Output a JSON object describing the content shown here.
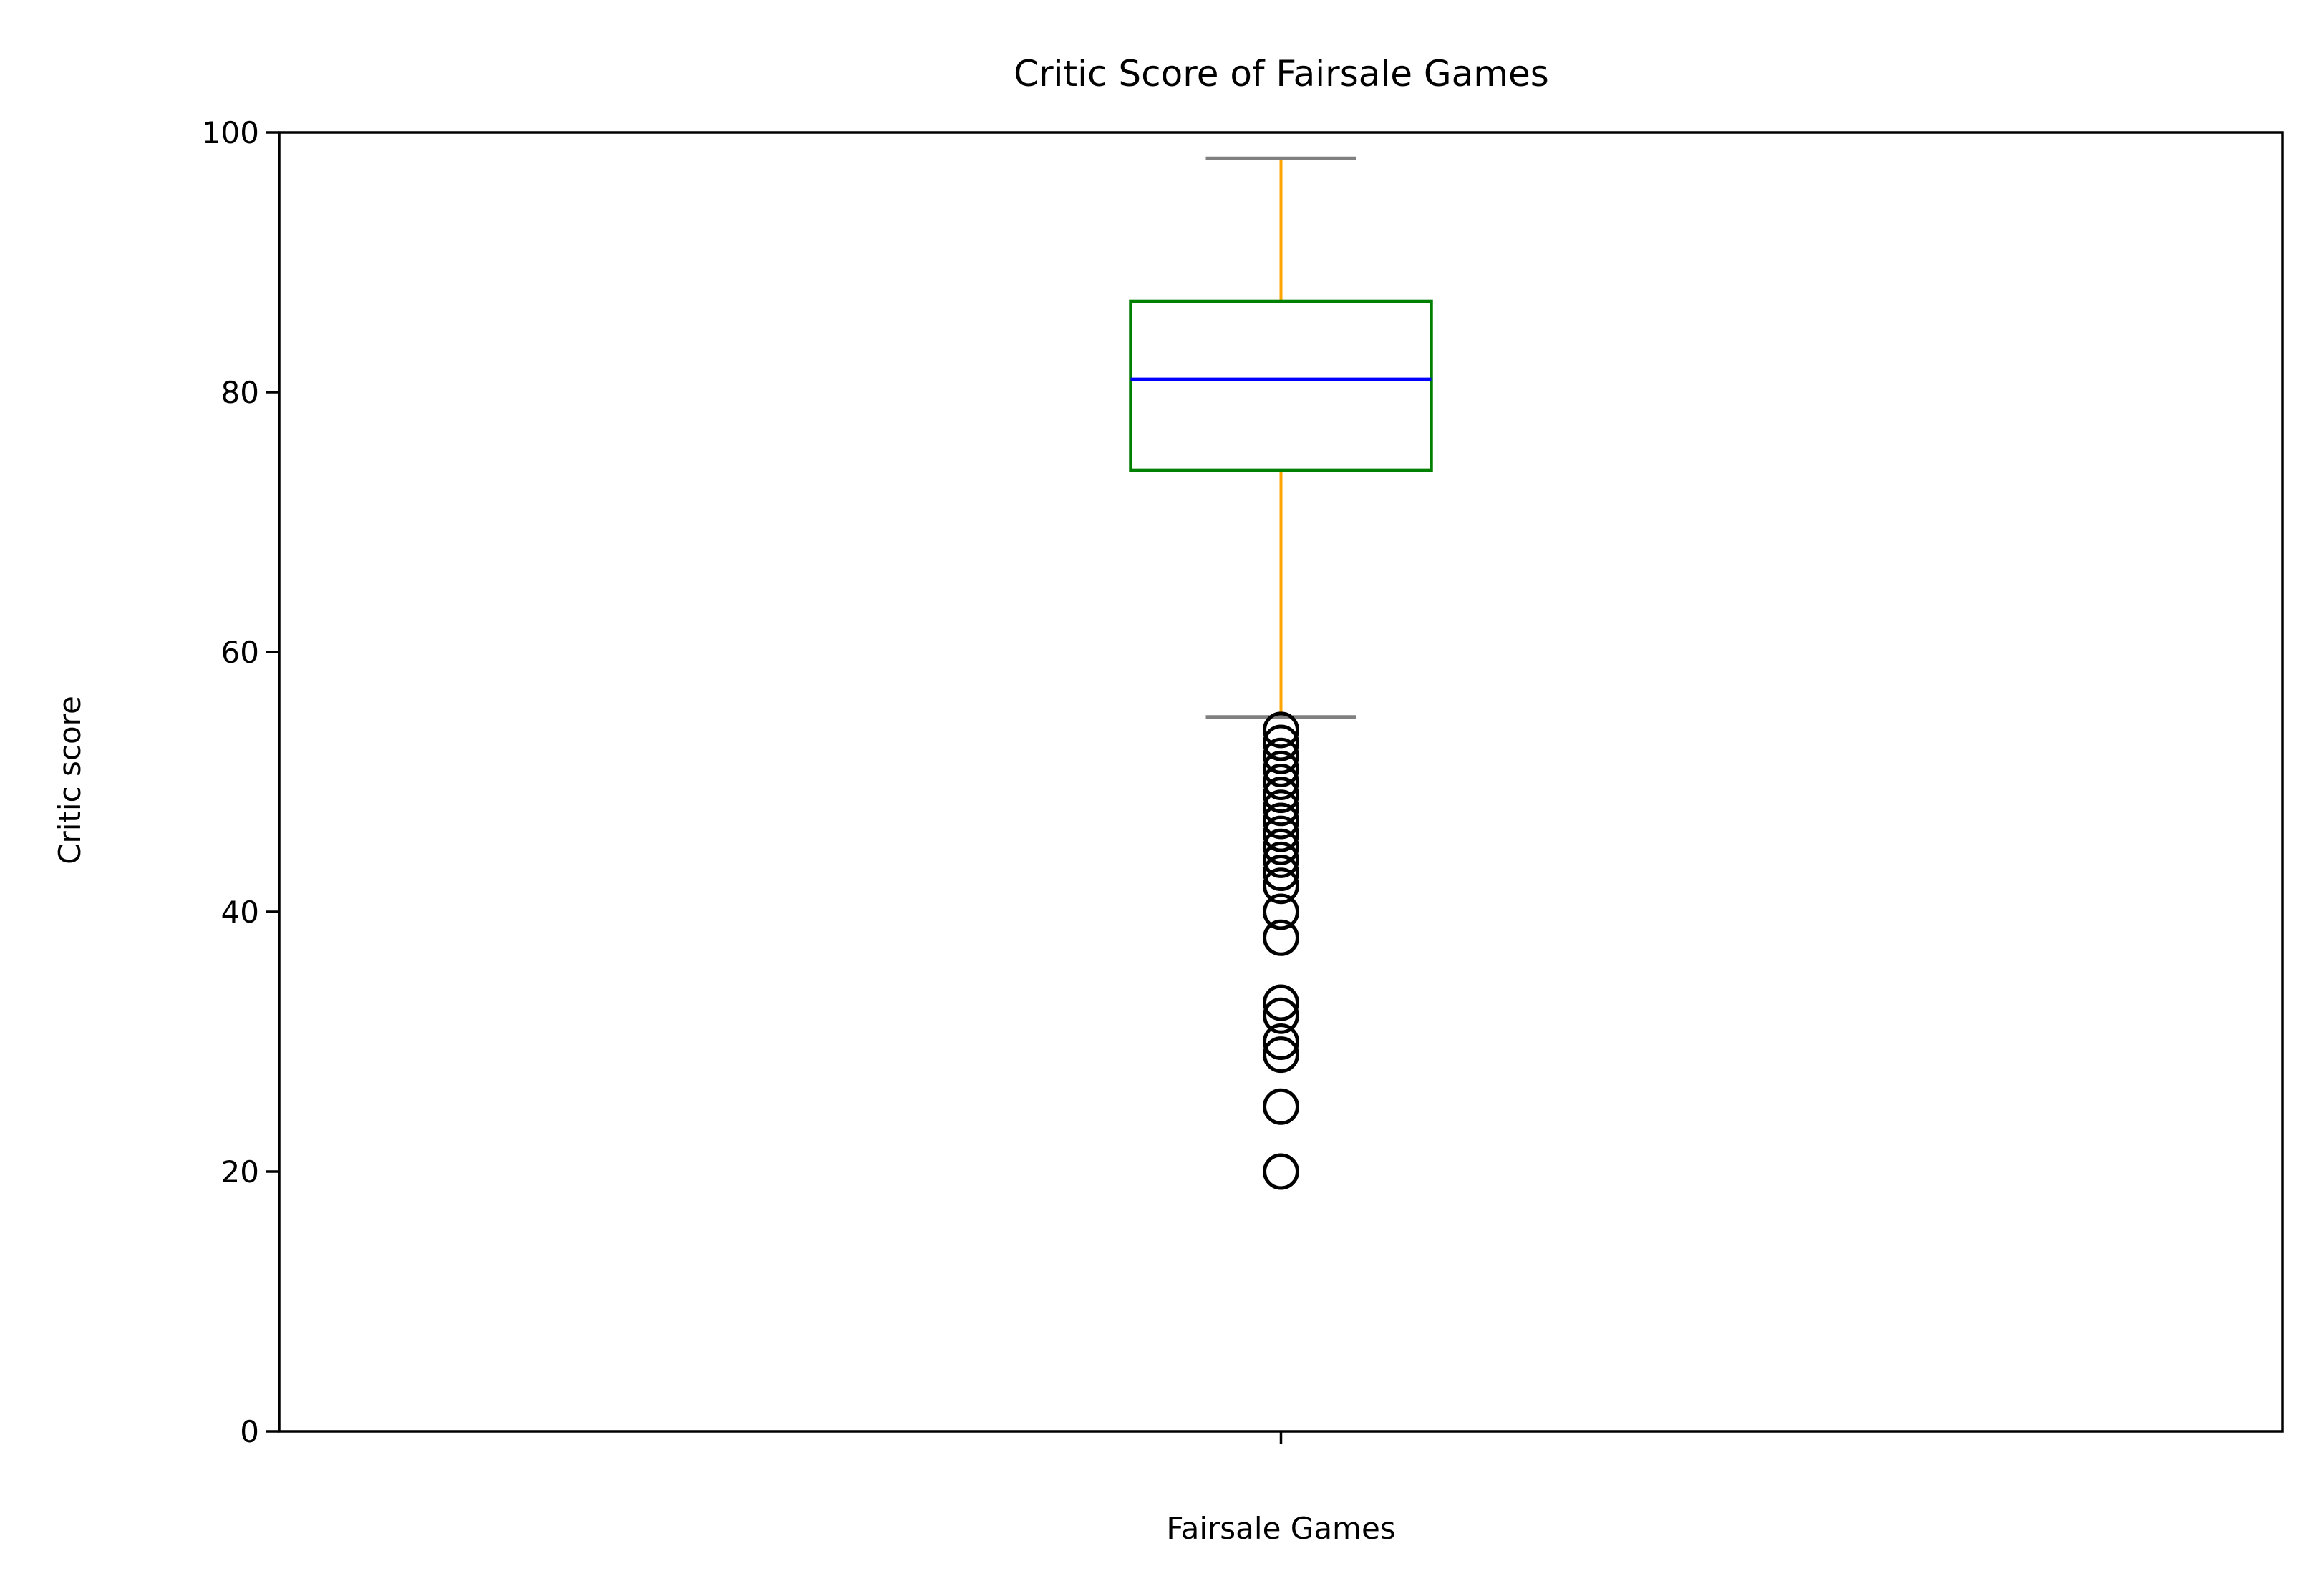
{
  "chart_data": {
    "type": "box",
    "title": "Critic Score of Fairsale Games",
    "xlabel": "",
    "ylabel": "Critic score",
    "categories": [
      "Fairsale Games"
    ],
    "ylim": [
      0,
      100
    ],
    "yticks": [
      0,
      20,
      40,
      60,
      80,
      100
    ],
    "grid": false,
    "legend": "none",
    "boxes": [
      {
        "category": "Fairsale Games",
        "whisker_low": 55,
        "q1": 74,
        "median": 81,
        "q3": 87,
        "whisker_high": 98,
        "outliers": [
          54,
          53,
          52,
          51,
          50,
          49,
          48,
          47,
          46,
          45,
          44,
          43,
          42,
          40,
          38,
          33,
          32,
          30,
          29,
          25,
          20
        ]
      }
    ],
    "colors": {
      "box": "#008000",
      "median": "#0000ff",
      "whiskers": "#ffa500",
      "caps": "#808080",
      "outliers": "#000000"
    }
  }
}
